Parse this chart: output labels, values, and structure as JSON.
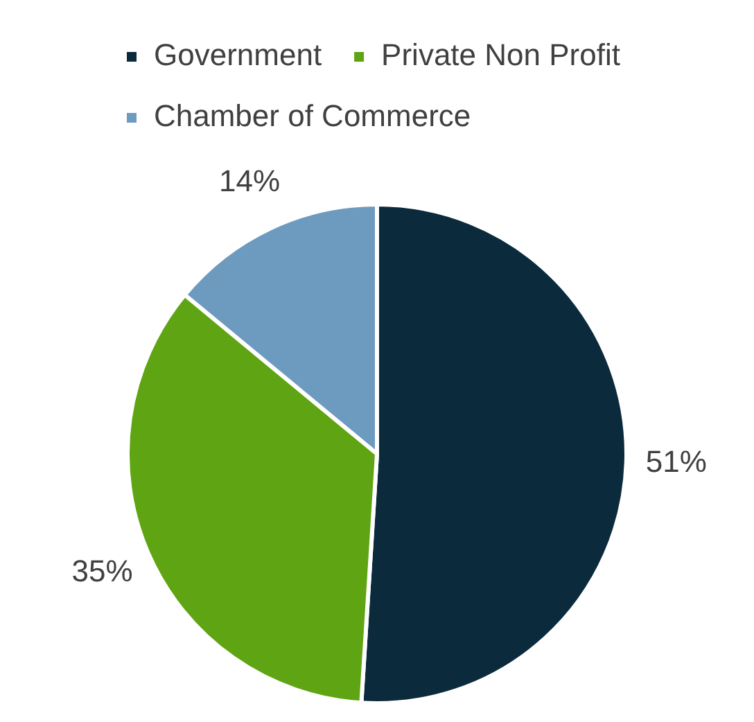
{
  "chart_data": {
    "type": "pie",
    "categories": [
      "Government",
      "Private Non Profit",
      "Chamber of Commerce"
    ],
    "values": [
      51,
      35,
      14
    ],
    "colors": [
      "#0b2a3c",
      "#5fa412",
      "#6d9bbf"
    ],
    "value_labels": [
      "51%",
      "35%",
      "14%"
    ],
    "legend": "top left"
  }
}
